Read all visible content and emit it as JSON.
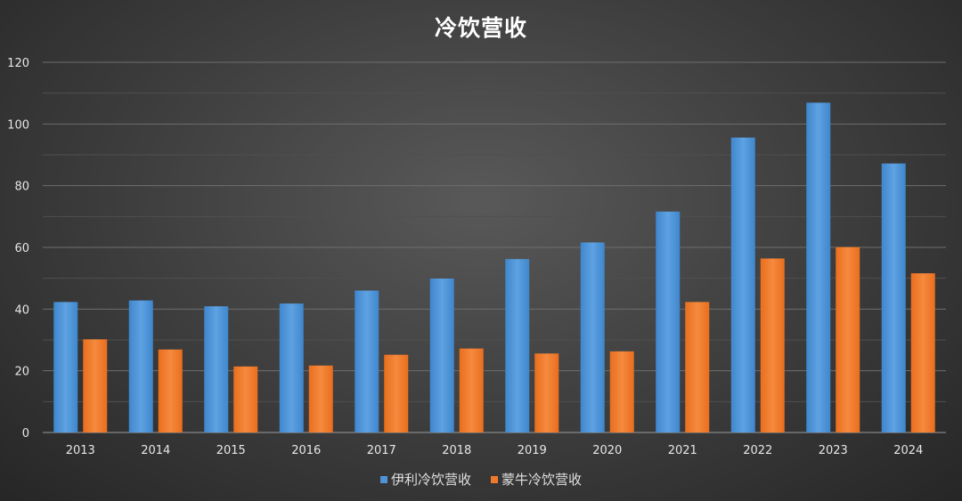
{
  "chart_data": {
    "type": "bar",
    "title": "冷饮营收",
    "categories": [
      "2013",
      "2014",
      "2015",
      "2016",
      "2017",
      "2018",
      "2019",
      "2020",
      "2021",
      "2022",
      "2023",
      "2024"
    ],
    "series": [
      {
        "name": "伊利冷饮营收",
        "color": "#4f93d6",
        "values": [
          42.3,
          42.8,
          40.9,
          41.8,
          46.0,
          49.9,
          56.2,
          61.6,
          71.6,
          95.6,
          106.9,
          87.2
        ]
      },
      {
        "name": "蒙牛冷饮营收",
        "color": "#ef7a2c",
        "values": [
          30.2,
          26.9,
          21.4,
          21.7,
          25.2,
          27.2,
          25.6,
          26.3,
          42.3,
          56.4,
          60.1,
          51.6
        ]
      }
    ],
    "ylim": [
      0,
      120
    ],
    "yticks": [
      0,
      20,
      40,
      60,
      80,
      100,
      120
    ],
    "grid": true,
    "legend": "bottom-center"
  }
}
